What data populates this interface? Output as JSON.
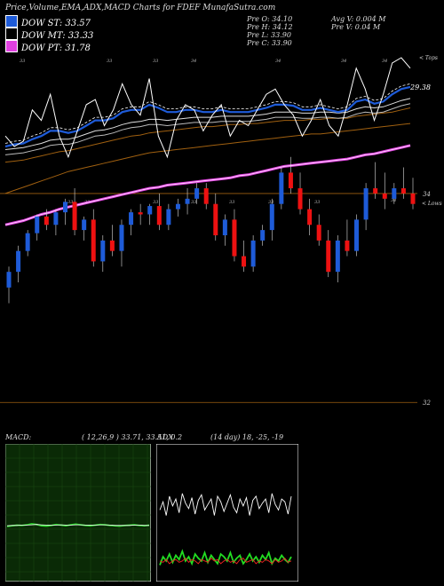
{
  "header": {
    "title": "Price,Volume,EMA,ADX,MACD Charts for FDEF MunafaSutra.com",
    "legend": [
      {
        "label": "DOW ST: 33.57",
        "color": "#1e5bd8"
      },
      {
        "label": "DOW MT: 33.33",
        "color": "#000000"
      },
      {
        "label": "DOW PT: 31.78",
        "color": "#e040e0"
      }
    ],
    "stats_left": [
      "Pre O: 34.10",
      "Pre H: 34.12",
      "Pre L: 33.90",
      "Pre C: 33.90"
    ],
    "stats_right": [
      "Avg V: 0.004 M",
      "Pre V: 0.04 M"
    ]
  },
  "chart_data": [
    {
      "type": "candlestick",
      "panel": "price",
      "title": "",
      "xlabel": "",
      "ylabel": "",
      "ylim": [
        31.9,
        35.3
      ],
      "price_labels": [
        {
          "value": 34,
          "text": "34"
        },
        {
          "value": 32,
          "text": "32"
        }
      ],
      "ema_last_label": "29.38",
      "top_label": "< Tops",
      "low_label": "< Lows",
      "top_marks": [
        "33",
        "33",
        "33",
        "34",
        "34",
        "34",
        "34"
      ],
      "low_marks": [
        "33",
        "33",
        "33",
        "33",
        "33",
        "33",
        "33",
        "34"
      ],
      "colors": {
        "up": "#1e5bd8",
        "down": "#ee1111",
        "ema_st": "#1e5bd8",
        "ema_mt": "#ffffff",
        "ema_pt": "#e040e0",
        "ema_long": "#a06010",
        "close": "#ffffff",
        "ref_line": "#a06010"
      },
      "candles": [
        [
          33.1,
          33.3,
          32.95,
          33.25
        ],
        [
          33.25,
          33.5,
          33.15,
          33.45
        ],
        [
          33.45,
          33.65,
          33.4,
          33.62
        ],
        [
          33.62,
          33.8,
          33.55,
          33.78
        ],
        [
          33.78,
          33.85,
          33.65,
          33.7
        ],
        [
          33.7,
          33.85,
          33.6,
          33.82
        ],
        [
          33.82,
          33.95,
          33.7,
          33.92
        ],
        [
          33.92,
          34.05,
          33.6,
          33.65
        ],
        [
          33.65,
          33.78,
          33.55,
          33.75
        ],
        [
          33.75,
          33.85,
          33.3,
          33.35
        ],
        [
          33.35,
          33.6,
          33.25,
          33.55
        ],
        [
          33.55,
          33.7,
          33.4,
          33.45
        ],
        [
          33.45,
          33.75,
          33.3,
          33.7
        ],
        [
          33.7,
          33.85,
          33.6,
          33.82
        ],
        [
          33.82,
          33.9,
          33.7,
          33.8
        ],
        [
          33.8,
          33.9,
          33.7,
          33.88
        ],
        [
          33.88,
          34.0,
          33.65,
          33.7
        ],
        [
          33.7,
          33.9,
          33.65,
          33.85
        ],
        [
          33.85,
          33.95,
          33.78,
          33.9
        ],
        [
          33.9,
          34.05,
          33.8,
          33.95
        ],
        [
          33.95,
          34.1,
          33.9,
          34.05
        ],
        [
          34.05,
          34.1,
          33.85,
          33.9
        ],
        [
          33.9,
          34.0,
          33.55,
          33.6
        ],
        [
          33.6,
          33.8,
          33.5,
          33.75
        ],
        [
          33.75,
          33.85,
          33.35,
          33.4
        ],
        [
          33.4,
          33.55,
          33.25,
          33.3
        ],
        [
          33.3,
          33.6,
          33.25,
          33.55
        ],
        [
          33.55,
          33.7,
          33.5,
          33.65
        ],
        [
          33.65,
          33.95,
          33.55,
          33.9
        ],
        [
          33.9,
          34.25,
          33.85,
          34.2
        ],
        [
          34.2,
          34.35,
          34.0,
          34.05
        ],
        [
          34.05,
          34.2,
          33.8,
          33.85
        ],
        [
          33.85,
          33.95,
          33.6,
          33.7
        ],
        [
          33.7,
          33.8,
          33.5,
          33.55
        ],
        [
          33.55,
          33.65,
          33.2,
          33.25
        ],
        [
          33.25,
          33.6,
          33.15,
          33.55
        ],
        [
          33.55,
          33.75,
          33.4,
          33.45
        ],
        [
          33.45,
          33.8,
          33.4,
          33.75
        ],
        [
          33.75,
          34.1,
          33.65,
          34.05
        ],
        [
          34.05,
          34.3,
          33.95,
          34.0
        ],
        [
          34.0,
          34.2,
          33.85,
          33.95
        ],
        [
          33.95,
          34.1,
          33.9,
          34.05
        ],
        [
          34.05,
          34.25,
          33.95,
          34.0
        ],
        [
          34.0,
          34.15,
          33.85,
          33.9
        ]
      ],
      "close_line": [
        34.55,
        34.45,
        34.5,
        34.8,
        34.7,
        34.95,
        34.55,
        34.35,
        34.6,
        34.85,
        34.9,
        34.65,
        34.8,
        35.05,
        34.85,
        34.75,
        35.1,
        34.55,
        34.35,
        34.7,
        34.85,
        34.8,
        34.6,
        34.75,
        34.85,
        34.55,
        34.7,
        34.65,
        34.8,
        34.95,
        35.0,
        34.85,
        34.75,
        34.55,
        34.7,
        34.9,
        34.65,
        34.55,
        34.85,
        35.2,
        35.0,
        34.7,
        34.95,
        35.25,
        35.3,
        35.2
      ],
      "ema_st": [
        34.45,
        34.47,
        34.48,
        34.52,
        34.55,
        34.6,
        34.6,
        34.58,
        34.6,
        34.65,
        34.7,
        34.7,
        34.72,
        34.78,
        34.8,
        34.8,
        34.85,
        34.82,
        34.78,
        34.78,
        34.8,
        34.8,
        34.78,
        34.78,
        34.8,
        34.78,
        34.78,
        34.78,
        34.8,
        34.82,
        34.85,
        34.85,
        34.84,
        34.8,
        34.8,
        34.82,
        34.8,
        34.78,
        34.8,
        34.88,
        34.9,
        34.86,
        34.88,
        34.95,
        35.0,
        35.02
      ],
      "ema_mt": [
        34.42,
        34.43,
        34.44,
        34.46,
        34.48,
        34.51,
        34.52,
        34.52,
        34.54,
        34.57,
        34.6,
        34.61,
        34.63,
        34.66,
        34.68,
        34.69,
        34.71,
        34.71,
        34.7,
        34.71,
        34.72,
        34.73,
        34.73,
        34.73,
        34.74,
        34.74,
        34.74,
        34.74,
        34.75,
        34.76,
        34.78,
        34.78,
        34.78,
        34.77,
        34.77,
        34.78,
        34.78,
        34.77,
        34.78,
        34.81,
        34.83,
        34.82,
        34.83,
        34.86,
        34.89,
        34.91
      ],
      "ema_long": [
        34.3,
        34.31,
        34.32,
        34.34,
        34.36,
        34.38,
        34.4,
        34.41,
        34.43,
        34.45,
        34.47,
        34.49,
        34.51,
        34.53,
        34.55,
        34.56,
        34.58,
        34.59,
        34.6,
        34.61,
        34.62,
        34.63,
        34.64,
        34.64,
        34.65,
        34.66,
        34.66,
        34.67,
        34.67,
        34.68,
        34.69,
        34.7,
        34.7,
        34.7,
        34.71,
        34.71,
        34.72,
        34.72,
        34.72,
        34.74,
        34.75,
        34.76,
        34.77,
        34.78,
        34.8,
        34.82
      ],
      "ema_pt": [
        33.7,
        33.72,
        33.74,
        33.77,
        33.8,
        33.82,
        33.85,
        33.87,
        33.89,
        33.91,
        33.93,
        33.95,
        33.97,
        33.99,
        34.01,
        34.03,
        34.05,
        34.06,
        34.08,
        34.09,
        34.1,
        34.11,
        34.12,
        34.13,
        34.14,
        34.15,
        34.17,
        34.18,
        34.2,
        34.22,
        34.24,
        34.26,
        34.27,
        34.28,
        34.29,
        34.3,
        34.31,
        34.32,
        34.33,
        34.35,
        34.37,
        34.38,
        34.4,
        34.42,
        34.44,
        34.46
      ],
      "ema_brown_low": [
        34.0,
        34.03,
        34.06,
        34.09,
        34.12,
        34.15,
        34.18,
        34.21,
        34.23,
        34.25,
        34.27,
        34.29,
        34.31,
        34.33,
        34.35,
        34.37,
        34.39,
        34.4,
        34.41,
        34.42,
        34.43,
        34.44,
        34.45,
        34.46,
        34.47,
        34.48,
        34.49,
        34.5,
        34.51,
        34.52,
        34.53,
        34.54,
        34.55,
        34.56,
        34.57,
        34.57,
        34.58,
        34.59,
        34.6,
        34.61,
        34.62,
        34.63,
        34.64,
        34.65,
        34.66,
        34.67
      ]
    },
    {
      "type": "line",
      "panel": "macd",
      "title": "MACD:",
      "params": "( 12,26,9 ) 33.71, 33.51, 0.2",
      "series": [
        {
          "color": "#22dd22",
          "values": [
            0.1,
            0.12,
            0.14,
            0.13,
            0.15,
            0.18,
            0.16,
            0.12,
            0.11,
            0.13,
            0.16,
            0.14,
            0.12,
            0.15,
            0.17,
            0.15,
            0.13,
            0.12,
            0.14,
            0.16,
            0.15,
            0.13,
            0.12,
            0.11,
            0.13,
            0.14,
            0.15,
            0.13,
            0.12,
            0.14
          ]
        },
        {
          "color": "#ffffff",
          "values": [
            0.12,
            0.13,
            0.13,
            0.14,
            0.14,
            0.15,
            0.16,
            0.15,
            0.14,
            0.14,
            0.14,
            0.15,
            0.14,
            0.14,
            0.15,
            0.15,
            0.14,
            0.14,
            0.14,
            0.15,
            0.15,
            0.14,
            0.13,
            0.13,
            0.13,
            0.13,
            0.14,
            0.14,
            0.13,
            0.13
          ]
        }
      ],
      "ylim": [
        -1.5,
        2.5
      ]
    },
    {
      "type": "line",
      "panel": "adx",
      "title": "ADX",
      "params": "(14 day) 18, -25, -19",
      "series": [
        {
          "color": "#ffffff",
          "values": [
            52,
            58,
            48,
            62,
            55,
            60,
            50,
            64,
            57,
            53,
            61,
            49,
            59,
            63,
            52,
            56,
            60,
            48,
            62,
            58,
            51,
            57,
            63,
            54,
            50,
            60,
            55,
            61,
            48,
            59,
            62,
            53,
            57,
            60,
            50,
            64,
            56,
            52,
            60,
            58,
            49,
            62
          ]
        },
        {
          "color": "#22dd22",
          "values": [
            12,
            18,
            15,
            20,
            14,
            19,
            16,
            22,
            15,
            18,
            13,
            20,
            17,
            15,
            21,
            14,
            19,
            16,
            13,
            20,
            18,
            15,
            21,
            14,
            17,
            19,
            13,
            16,
            20,
            15,
            18,
            14,
            19,
            16,
            21,
            13,
            17,
            15,
            19,
            16,
            14,
            18
          ]
        },
        {
          "color": "#ee2222",
          "values": [
            15,
            14,
            16,
            13,
            15,
            16,
            14,
            15,
            17,
            14,
            16,
            15,
            13,
            16,
            15,
            14,
            17,
            15,
            16,
            13,
            15,
            16,
            14,
            15,
            13,
            16,
            17,
            14,
            15,
            16,
            13,
            15,
            14,
            16,
            15,
            13,
            16,
            14,
            15,
            17,
            14,
            15
          ]
        }
      ],
      "ylim": [
        0,
        100
      ]
    }
  ]
}
